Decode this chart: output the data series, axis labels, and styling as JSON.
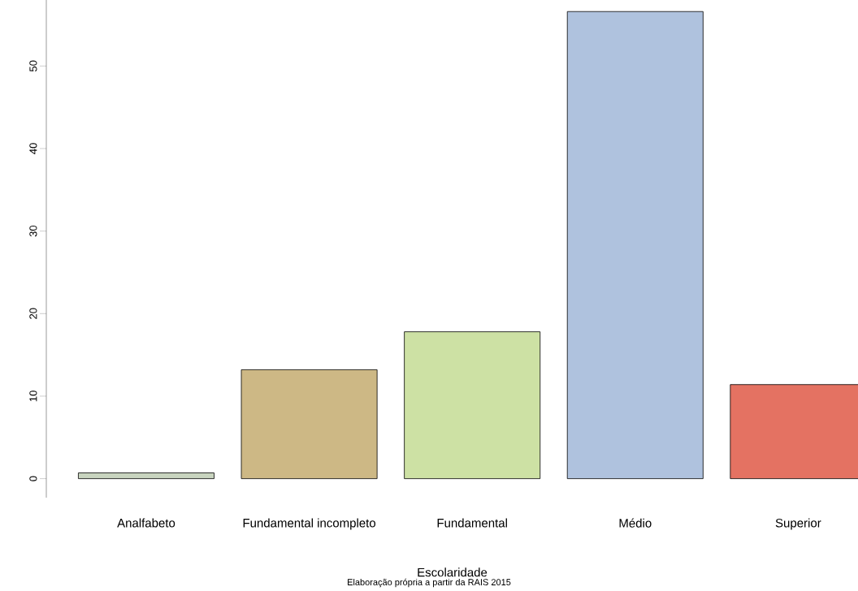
{
  "chart_data": {
    "type": "bar",
    "xlabel": "Escolaridade",
    "categories": [
      "Analfabeto",
      "Fundamental incompleto",
      "Fundamental",
      "Médio",
      "Superior"
    ],
    "values": [
      0.7,
      13.2,
      17.8,
      56.6,
      11.4
    ],
    "colors": [
      "#c8d4bf",
      "#cdb885",
      "#cde1a4",
      "#afc2de",
      "#e47262"
    ],
    "ylim": [
      -2.3,
      58
    ],
    "yticks": [
      0,
      10,
      20,
      30,
      40,
      50
    ],
    "annotations": [
      "Elaboração própria a partir da RAIS 2015"
    ]
  }
}
